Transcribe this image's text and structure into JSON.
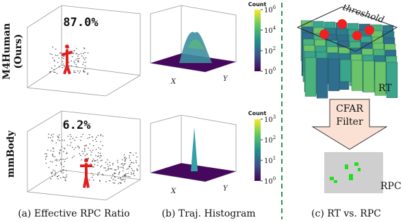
{
  "panels": [
    {
      "caption": "(a) Effective RPC Ratio",
      "rows": [
        {
          "row_label": [
            "M4Human",
            "(Ours)"
          ],
          "ratio": "87.0%"
        },
        {
          "row_label": [
            "mmBody"
          ],
          "ratio": "6.2%"
        }
      ]
    },
    {
      "caption": "(b) Traj. Histogram",
      "plots": [
        {
          "colorbar_title": "Count",
          "x_label": "X",
          "y_label": "Y",
          "colorbar_ticks": [
            {
              "base": "10",
              "exp": "0"
            },
            {
              "base": "10",
              "exp": "2"
            },
            {
              "base": "10",
              "exp": "4"
            },
            {
              "base": "10",
              "exp": "6"
            }
          ]
        },
        {
          "colorbar_title": "Count",
          "x_label": "X",
          "y_label": "Y",
          "colorbar_ticks": [
            {
              "base": "10",
              "exp": "0"
            },
            {
              "base": "10",
              "exp": "1"
            },
            {
              "base": "10",
              "exp": "2"
            },
            {
              "base": "10",
              "exp": "3"
            }
          ]
        }
      ]
    },
    {
      "caption": "(c) RT vs. RPC",
      "threshold": "threshold",
      "rt": "RT",
      "filter": [
        "CFAR",
        "Filter"
      ],
      "rpc": "RPC"
    }
  ]
}
